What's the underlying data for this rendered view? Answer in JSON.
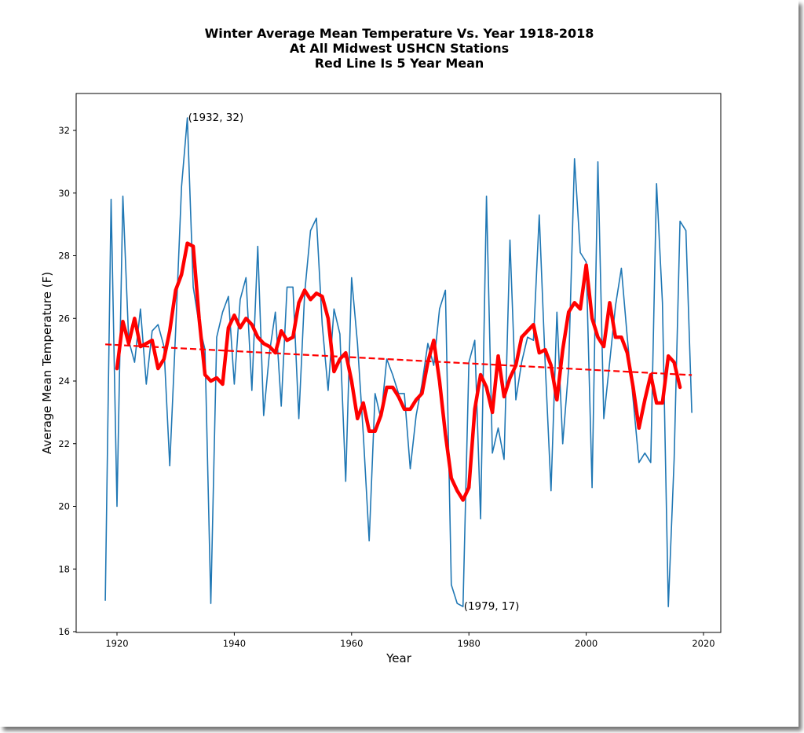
{
  "chart_data": {
    "type": "line",
    "title": [
      "Winter Average Mean Temperature Vs. Year 1918-2018",
      "At All Midwest USHCN Stations",
      "Red Line Is 5 Year Mean"
    ],
    "xlabel": "Year",
    "ylabel": "Average Mean Temperature (F)",
    "xlim": [
      1913,
      2023
    ],
    "ylim": [
      16,
      33.1
    ],
    "xticks": [
      1920,
      1940,
      1960,
      1980,
      2000,
      2020
    ],
    "yticks": [
      16,
      18,
      20,
      22,
      24,
      26,
      28,
      30,
      32
    ],
    "grid": false,
    "series": [
      {
        "name": "Winter average mean temperature",
        "color": "#1f77b4",
        "style": "solid",
        "x_start": 1918,
        "values": [
          17.0,
          29.8,
          20.0,
          29.9,
          25.3,
          24.6,
          26.3,
          23.9,
          25.6,
          25.8,
          25.1,
          21.3,
          25.6,
          30.2,
          32.4,
          27.0,
          25.8,
          25.0,
          16.9,
          25.4,
          26.2,
          26.7,
          23.9,
          26.6,
          27.3,
          23.7,
          28.3,
          22.9,
          24.9,
          26.2,
          23.2,
          27.0,
          27.0,
          22.8,
          26.8,
          28.8,
          29.2,
          25.8,
          23.7,
          26.3,
          25.5,
          20.8,
          27.3,
          25.2,
          22.3,
          18.9,
          23.6,
          22.8,
          24.7,
          24.2,
          23.6,
          23.6,
          21.2,
          22.9,
          23.9,
          25.2,
          24.5,
          26.3,
          26.9,
          17.5,
          16.9,
          16.8,
          24.6,
          25.3,
          19.6,
          29.9,
          21.7,
          22.5,
          21.5,
          28.5,
          23.4,
          24.6,
          25.4,
          25.3,
          29.3,
          24.6,
          20.5,
          26.2,
          22.0,
          24.4,
          31.1,
          28.1,
          27.8,
          20.6,
          31.0,
          22.8,
          24.6,
          26.4,
          27.6,
          25.4,
          23.4,
          21.4,
          21.7,
          21.4,
          30.3,
          26.5,
          16.8,
          21.5,
          29.1,
          28.8,
          23.0
        ]
      },
      {
        "name": "5 year mean",
        "color": "#ff0000",
        "style": "solid-thick",
        "x_start": 1920,
        "values": [
          24.4,
          25.9,
          25.2,
          26.0,
          25.1,
          25.2,
          25.3,
          24.4,
          24.7,
          25.6,
          26.9,
          27.4,
          28.4,
          28.3,
          26.0,
          24.2,
          24.0,
          24.1,
          23.9,
          25.7,
          26.1,
          25.7,
          26.0,
          25.8,
          25.4,
          25.2,
          25.1,
          24.9,
          25.6,
          25.3,
          25.4,
          26.5,
          26.9,
          26.6,
          26.8,
          26.7,
          26.0,
          24.3,
          24.7,
          24.9,
          24.0,
          22.8,
          23.3,
          22.4,
          22.4,
          22.9,
          23.8,
          23.8,
          23.5,
          23.1,
          23.1,
          23.4,
          23.6,
          24.6,
          25.3,
          24.0,
          22.3,
          20.9,
          20.5,
          20.2,
          20.6,
          23.1,
          24.2,
          23.8,
          23.0,
          24.8,
          23.5,
          24.1,
          24.5,
          25.4,
          25.6,
          25.8,
          24.9,
          25.0,
          24.5,
          23.4,
          25.0,
          26.2,
          26.5,
          26.3,
          27.7,
          26.0,
          25.4,
          25.1,
          26.5,
          25.4,
          25.4,
          24.9,
          23.8,
          22.5,
          23.4,
          24.2,
          23.3,
          23.3,
          24.8,
          24.6,
          23.8
        ]
      },
      {
        "name": "Linear trend",
        "color": "#ff0000",
        "style": "dashed",
        "x": [
          1918,
          2018
        ],
        "values": [
          25.17,
          24.19
        ]
      }
    ],
    "annotations": [
      {
        "text": "(1932, 32)",
        "x": 1932,
        "y": 32.4
      },
      {
        "text": "(1979, 17)",
        "x": 1979,
        "y": 16.8
      }
    ]
  }
}
